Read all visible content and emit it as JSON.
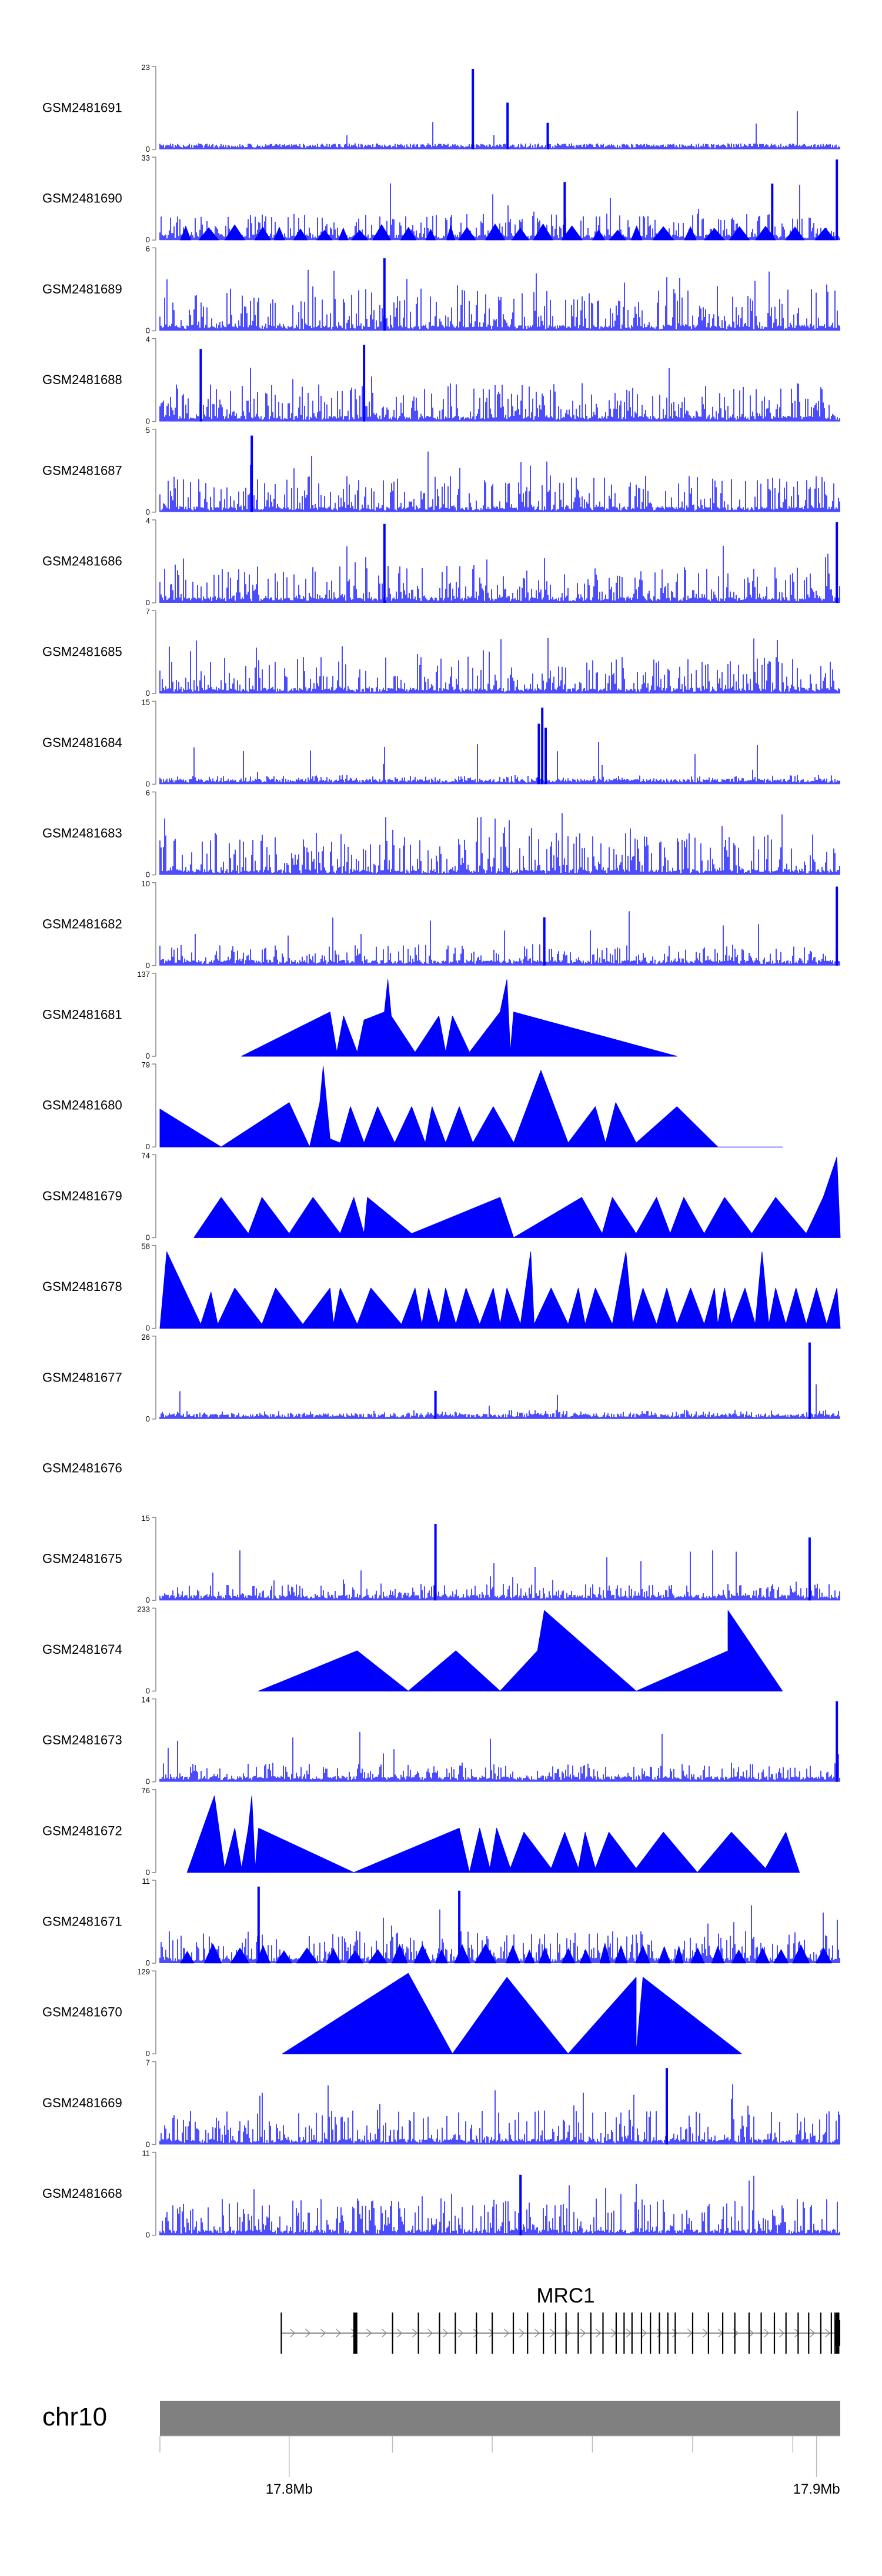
{
  "chart_data": {
    "type": "area",
    "title": "",
    "xlabel": "",
    "ylabel": "",
    "color": "#0000ff",
    "xlim": [
      17.7755,
      17.9045
    ],
    "tracks": [
      {
        "name": "GSM2481691",
        "ylim": [
          0,
          23
        ],
        "ymax_label": "23",
        "ymin_label": "0",
        "pattern": "dense",
        "base": 0.08,
        "spikes": [
          {
            "x": 0.46,
            "h": 1.0
          },
          {
            "x": 0.511,
            "h": 0.58
          },
          {
            "x": 0.57,
            "h": 0.33
          }
        ]
      },
      {
        "name": "GSM2481690",
        "ylim": [
          0,
          33
        ],
        "ymax_label": "33",
        "ymin_label": "0",
        "pattern": "triangles",
        "base": 0.35,
        "spikes": [
          {
            "x": 0.595,
            "h": 0.72
          },
          {
            "x": 0.9,
            "h": 0.7
          },
          {
            "x": 0.995,
            "h": 1.0
          }
        ]
      },
      {
        "name": "GSM2481689",
        "ylim": [
          0,
          6
        ],
        "ymax_label": "6",
        "ymin_label": "0",
        "pattern": "dense",
        "base": 0.55,
        "spikes": [
          {
            "x": 0.33,
            "h": 0.9
          }
        ]
      },
      {
        "name": "GSM2481688",
        "ylim": [
          0,
          4
        ],
        "ymax_label": "4",
        "ymin_label": "0",
        "pattern": "dense",
        "base": 0.5,
        "spikes": [
          {
            "x": 0.3,
            "h": 0.95
          },
          {
            "x": 0.06,
            "h": 0.9
          }
        ]
      },
      {
        "name": "GSM2481687",
        "ylim": [
          0,
          5
        ],
        "ymax_label": "5",
        "ymin_label": "0",
        "pattern": "dense",
        "base": 0.5,
        "spikes": [
          {
            "x": 0.135,
            "h": 0.95
          }
        ]
      },
      {
        "name": "GSM2481686",
        "ylim": [
          0,
          4
        ],
        "ymax_label": "4",
        "ymin_label": "0",
        "pattern": "dense",
        "base": 0.5,
        "spikes": [
          {
            "x": 0.33,
            "h": 0.98
          },
          {
            "x": 0.995,
            "h": 1.0
          }
        ]
      },
      {
        "name": "GSM2481685",
        "ylim": [
          0,
          7
        ],
        "ymax_label": "7",
        "ymin_label": "0",
        "pattern": "dense",
        "base": 0.48,
        "spikes": []
      },
      {
        "name": "GSM2481684",
        "ylim": [
          0,
          15
        ],
        "ymax_label": "15",
        "ymin_label": "0",
        "pattern": "dense",
        "base": 0.12,
        "spikes": [
          {
            "x": 0.562,
            "h": 0.95
          },
          {
            "x": 0.557,
            "h": 0.75
          },
          {
            "x": 0.567,
            "h": 0.7
          }
        ]
      },
      {
        "name": "GSM2481683",
        "ylim": [
          0,
          6
        ],
        "ymax_label": "6",
        "ymin_label": "0",
        "pattern": "dense",
        "base": 0.55,
        "spikes": []
      },
      {
        "name": "GSM2481682",
        "ylim": [
          0,
          10
        ],
        "ymax_label": "10",
        "ymin_label": "0",
        "pattern": "dense",
        "base": 0.28,
        "spikes": [
          {
            "x": 0.995,
            "h": 0.98
          },
          {
            "x": 0.565,
            "h": 0.6
          }
        ]
      },
      {
        "name": "GSM2481681",
        "ylim": [
          0,
          137
        ],
        "ymax_label": "137",
        "ymin_label": "0",
        "pattern": "peaks",
        "base": 0,
        "points": [
          [
            0.12,
            0
          ],
          [
            0.25,
            0.55
          ],
          [
            0.26,
            0.05
          ],
          [
            0.27,
            0.5
          ],
          [
            0.29,
            0.05
          ],
          [
            0.3,
            0.45
          ],
          [
            0.33,
            0.55
          ],
          [
            0.335,
            0.95
          ],
          [
            0.34,
            0.5
          ],
          [
            0.375,
            0.05
          ],
          [
            0.41,
            0.5
          ],
          [
            0.42,
            0.05
          ],
          [
            0.43,
            0.5
          ],
          [
            0.455,
            0.05
          ],
          [
            0.5,
            0.55
          ],
          [
            0.51,
            0.95
          ],
          [
            0.515,
            0.05
          ],
          [
            0.52,
            0.55
          ],
          [
            0.76,
            0.0
          ]
        ]
      },
      {
        "name": "GSM2481680",
        "ylim": [
          0,
          79
        ],
        "ymax_label": "79",
        "ymin_label": "0",
        "pattern": "peaks",
        "base": 0,
        "points": [
          [
            0.0,
            0.47
          ],
          [
            0.09,
            0.0
          ],
          [
            0.19,
            0.55
          ],
          [
            0.22,
            0.0
          ],
          [
            0.235,
            0.55
          ],
          [
            0.24,
            1.0
          ],
          [
            0.25,
            0.1
          ],
          [
            0.265,
            0.05
          ],
          [
            0.28,
            0.5
          ],
          [
            0.3,
            0.05
          ],
          [
            0.32,
            0.5
          ],
          [
            0.345,
            0.05
          ],
          [
            0.37,
            0.5
          ],
          [
            0.39,
            0.05
          ],
          [
            0.4,
            0.5
          ],
          [
            0.42,
            0.05
          ],
          [
            0.44,
            0.5
          ],
          [
            0.46,
            0.05
          ],
          [
            0.49,
            0.5
          ],
          [
            0.52,
            0.05
          ],
          [
            0.56,
            0.95
          ],
          [
            0.6,
            0.05
          ],
          [
            0.64,
            0.5
          ],
          [
            0.655,
            0.05
          ],
          [
            0.67,
            0.55
          ],
          [
            0.7,
            0.05
          ],
          [
            0.76,
            0.5
          ],
          [
            0.82,
            0.0
          ],
          [
            0.915,
            0.0
          ]
        ]
      },
      {
        "name": "GSM2481679",
        "ylim": [
          0,
          74
        ],
        "ymax_label": "74",
        "ymin_label": "0",
        "pattern": "peaks",
        "base": 0,
        "points": [
          [
            0.05,
            0
          ],
          [
            0.09,
            0.5
          ],
          [
            0.13,
            0.05
          ],
          [
            0.15,
            0.5
          ],
          [
            0.19,
            0.05
          ],
          [
            0.225,
            0.5
          ],
          [
            0.265,
            0.05
          ],
          [
            0.285,
            0.5
          ],
          [
            0.3,
            0.05
          ],
          [
            0.305,
            0.5
          ],
          [
            0.37,
            0.05
          ],
          [
            0.5,
            0.5
          ],
          [
            0.52,
            0.0
          ],
          [
            0.62,
            0.5
          ],
          [
            0.65,
            0.05
          ],
          [
            0.665,
            0.5
          ],
          [
            0.7,
            0.05
          ],
          [
            0.73,
            0.5
          ],
          [
            0.75,
            0.05
          ],
          [
            0.77,
            0.5
          ],
          [
            0.8,
            0.05
          ],
          [
            0.83,
            0.5
          ],
          [
            0.87,
            0.05
          ],
          [
            0.905,
            0.5
          ],
          [
            0.95,
            0.05
          ],
          [
            0.975,
            0.5
          ],
          [
            0.995,
            1.0
          ],
          [
            1.0,
            0.0
          ]
        ]
      },
      {
        "name": "GSM2481678",
        "ylim": [
          0,
          58
        ],
        "ymax_label": "58",
        "ymin_label": "0",
        "pattern": "peaks",
        "base": 0,
        "points": [
          [
            0.0,
            0.0
          ],
          [
            0.01,
            0.95
          ],
          [
            0.06,
            0.05
          ],
          [
            0.075,
            0.45
          ],
          [
            0.085,
            0.05
          ],
          [
            0.11,
            0.5
          ],
          [
            0.15,
            0.05
          ],
          [
            0.17,
            0.5
          ],
          [
            0.21,
            0.05
          ],
          [
            0.25,
            0.5
          ],
          [
            0.255,
            0.05
          ],
          [
            0.265,
            0.5
          ],
          [
            0.29,
            0.05
          ],
          [
            0.31,
            0.5
          ],
          [
            0.355,
            0.05
          ],
          [
            0.375,
            0.5
          ],
          [
            0.385,
            0.05
          ],
          [
            0.395,
            0.5
          ],
          [
            0.41,
            0.05
          ],
          [
            0.42,
            0.5
          ],
          [
            0.435,
            0.05
          ],
          [
            0.45,
            0.5
          ],
          [
            0.47,
            0.05
          ],
          [
            0.49,
            0.5
          ],
          [
            0.5,
            0.05
          ],
          [
            0.51,
            0.5
          ],
          [
            0.53,
            0.05
          ],
          [
            0.545,
            0.95
          ],
          [
            0.55,
            0.05
          ],
          [
            0.575,
            0.5
          ],
          [
            0.6,
            0.05
          ],
          [
            0.615,
            0.5
          ],
          [
            0.625,
            0.05
          ],
          [
            0.64,
            0.5
          ],
          [
            0.665,
            0.05
          ],
          [
            0.685,
            0.95
          ],
          [
            0.695,
            0.05
          ],
          [
            0.71,
            0.5
          ],
          [
            0.73,
            0.05
          ],
          [
            0.745,
            0.5
          ],
          [
            0.76,
            0.05
          ],
          [
            0.78,
            0.5
          ],
          [
            0.8,
            0.05
          ],
          [
            0.815,
            0.5
          ],
          [
            0.82,
            0.05
          ],
          [
            0.83,
            0.5
          ],
          [
            0.84,
            0.05
          ],
          [
            0.86,
            0.5
          ],
          [
            0.875,
            0.05
          ],
          [
            0.885,
            0.95
          ],
          [
            0.895,
            0.05
          ],
          [
            0.905,
            0.5
          ],
          [
            0.92,
            0.05
          ],
          [
            0.935,
            0.5
          ],
          [
            0.95,
            0.05
          ],
          [
            0.965,
            0.5
          ],
          [
            0.98,
            0.05
          ],
          [
            0.995,
            0.5
          ],
          [
            1.0,
            0.0
          ]
        ]
      },
      {
        "name": "GSM2481677",
        "ylim": [
          0,
          26
        ],
        "ymax_label": "26",
        "ymin_label": "0",
        "pattern": "dense",
        "base": 0.12,
        "spikes": [
          {
            "x": 0.955,
            "h": 0.95
          },
          {
            "x": 0.405,
            "h": 0.35
          }
        ]
      },
      {
        "name": "GSM2481676",
        "ylim": null,
        "ymax_label": "",
        "ymin_label": "",
        "pattern": "empty",
        "base": 0,
        "spikes": []
      },
      {
        "name": "GSM2481675",
        "ylim": [
          0,
          15
        ],
        "ymax_label": "15",
        "ymin_label": "0",
        "pattern": "dense",
        "base": 0.22,
        "spikes": [
          {
            "x": 0.405,
            "h": 0.95
          },
          {
            "x": 0.955,
            "h": 0.78
          }
        ]
      },
      {
        "name": "GSM2481674",
        "ylim": [
          0,
          233
        ],
        "ymax_label": "233",
        "ymin_label": "0",
        "pattern": "peaks",
        "base": 0,
        "points": [
          [
            0.145,
            0
          ],
          [
            0.29,
            0.5
          ],
          [
            0.365,
            0.0
          ],
          [
            0.435,
            0.5
          ],
          [
            0.5,
            0.0
          ],
          [
            0.555,
            0.5
          ],
          [
            0.565,
            1.0
          ],
          [
            0.7,
            0.0
          ],
          [
            0.835,
            0.5
          ],
          [
            0.835,
            1.0
          ],
          [
            0.915,
            0.0
          ]
        ]
      },
      {
        "name": "GSM2481673",
        "ylim": [
          0,
          14
        ],
        "ymax_label": "14",
        "ymin_label": "0",
        "pattern": "dense",
        "base": 0.25,
        "spikes": [
          {
            "x": 0.995,
            "h": 1.0
          }
        ]
      },
      {
        "name": "GSM2481672",
        "ylim": [
          0,
          76
        ],
        "ymax_label": "76",
        "ymin_label": "0",
        "pattern": "peaks",
        "base": 0,
        "points": [
          [
            0.04,
            0
          ],
          [
            0.08,
            0.95
          ],
          [
            0.095,
            0.05
          ],
          [
            0.11,
            0.55
          ],
          [
            0.12,
            0.05
          ],
          [
            0.13,
            0.55
          ],
          [
            0.135,
            0.95
          ],
          [
            0.14,
            0.05
          ],
          [
            0.145,
            0.55
          ],
          [
            0.285,
            0.0
          ],
          [
            0.44,
            0.55
          ],
          [
            0.455,
            0.0
          ],
          [
            0.47,
            0.55
          ],
          [
            0.485,
            0.05
          ],
          [
            0.495,
            0.55
          ],
          [
            0.515,
            0.05
          ],
          [
            0.535,
            0.5
          ],
          [
            0.575,
            0.05
          ],
          [
            0.595,
            0.5
          ],
          [
            0.615,
            0.05
          ],
          [
            0.625,
            0.5
          ],
          [
            0.64,
            0.05
          ],
          [
            0.66,
            0.5
          ],
          [
            0.7,
            0.05
          ],
          [
            0.74,
            0.5
          ],
          [
            0.79,
            0.0
          ],
          [
            0.84,
            0.5
          ],
          [
            0.89,
            0.05
          ],
          [
            0.92,
            0.5
          ],
          [
            0.94,
            0.0
          ]
        ]
      },
      {
        "name": "GSM2481671",
        "ylim": [
          0,
          11
        ],
        "ymax_label": "11",
        "ymin_label": "0",
        "pattern": "dense-tri",
        "base": 0.42,
        "spikes": [
          {
            "x": 0.145,
            "h": 0.95
          },
          {
            "x": 0.44,
            "h": 0.9
          }
        ]
      },
      {
        "name": "GSM2481670",
        "ylim": [
          0,
          129
        ],
        "ymax_label": "129",
        "ymin_label": "0",
        "pattern": "peaks",
        "base": 0,
        "points": [
          [
            0.18,
            0
          ],
          [
            0.365,
            1.0
          ],
          [
            0.43,
            0.0
          ],
          [
            0.51,
            0.95
          ],
          [
            0.6,
            0.0
          ],
          [
            0.7,
            0.95
          ],
          [
            0.7,
            0.0
          ],
          [
            0.71,
            0.95
          ],
          [
            0.855,
            0.0
          ]
        ]
      },
      {
        "name": "GSM2481669",
        "ylim": [
          0,
          7
        ],
        "ymax_label": "7",
        "ymin_label": "0",
        "pattern": "dense",
        "base": 0.45,
        "spikes": [
          {
            "x": 0.745,
            "h": 0.95
          }
        ]
      },
      {
        "name": "GSM2481668",
        "ylim": [
          0,
          11
        ],
        "ymax_label": "11",
        "ymin_label": "0",
        "pattern": "dense",
        "base": 0.48,
        "spikes": [
          {
            "x": 0.53,
            "h": 0.75
          }
        ]
      }
    ],
    "gene": {
      "name": "MRC1",
      "start": 17.7985,
      "end": 17.9045,
      "strand": "+",
      "exons": [
        17.7985,
        17.8125,
        17.8128,
        17.8196,
        17.8245,
        17.8285,
        17.8315,
        17.8355,
        17.8385,
        17.8425,
        17.8452,
        17.8482,
        17.8505,
        17.8525,
        17.8548,
        17.8572,
        17.8595,
        17.862,
        17.8635,
        17.865,
        17.8668,
        17.8685,
        17.8702,
        17.8718,
        17.8732,
        17.8765,
        17.8795,
        17.8822,
        17.8845,
        17.8872,
        17.8895,
        17.892,
        17.8942,
        17.8965,
        17.8985,
        17.9008,
        17.9028,
        17.9035,
        17.904
      ]
    },
    "chromosome": "chr10",
    "x_ticks": [
      {
        "value": 17.8,
        "label": "17.8Mb"
      },
      {
        "value": 17.9,
        "label": "17.9Mb"
      }
    ],
    "minor_ticks": [
      17.7755,
      17.8,
      17.8196,
      17.8385,
      17.8575,
      17.8765,
      17.8955,
      17.9
    ]
  }
}
